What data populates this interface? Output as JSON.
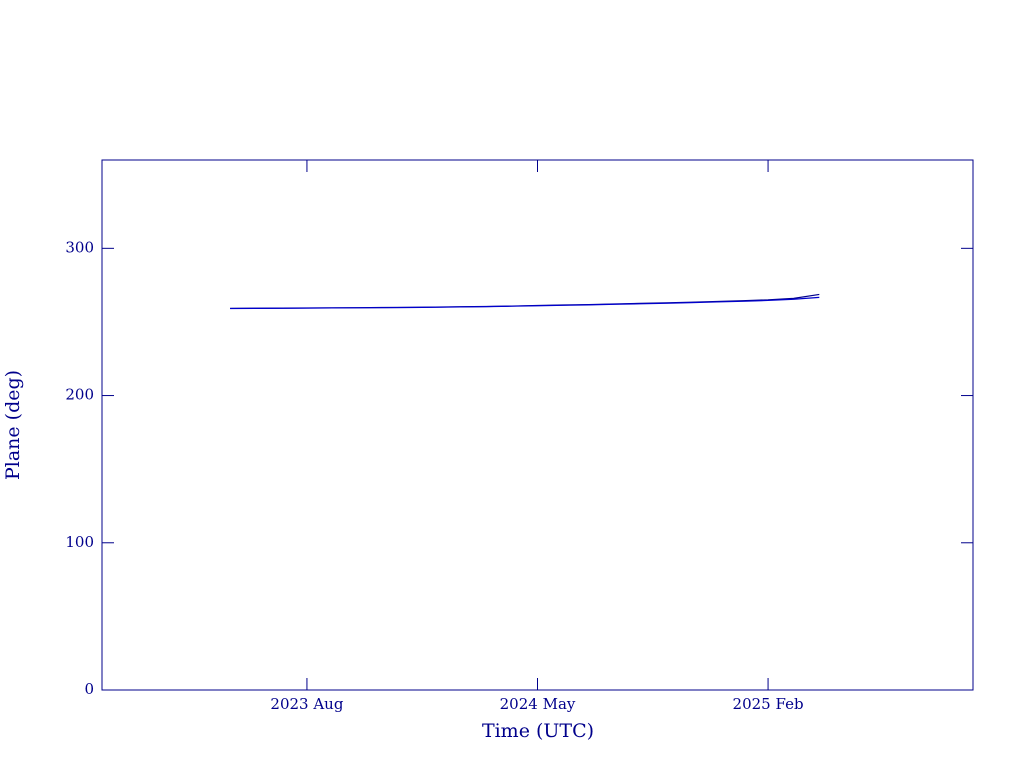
{
  "chart_data": {
    "type": "line",
    "x_label": "Time (UTC)",
    "y_label": "Plane (deg)",
    "x": [
      "2023-05",
      "2023-06",
      "2023-07",
      "2023-08",
      "2023-09",
      "2023-10",
      "2023-11",
      "2023-12",
      "2024-01",
      "2024-02",
      "2024-03",
      "2024-04",
      "2024-05",
      "2024-06",
      "2024-07",
      "2024-08",
      "2024-09",
      "2024-10",
      "2024-11",
      "2024-12",
      "2025-01",
      "2025-02",
      "2025-03",
      "2025-04"
    ],
    "series": [
      {
        "color": "#00008b",
        "values": [
          259.2,
          259.3,
          259.4,
          259.5,
          259.6,
          259.7,
          259.8,
          259.9,
          260.1,
          260.3,
          260.5,
          260.8,
          261.2,
          261.5,
          261.8,
          262.2,
          262.6,
          263.0,
          263.4,
          263.9,
          264.4,
          265.0,
          266.0,
          268.7
        ]
      },
      {
        "color": "#0000cd",
        "values": [
          259.1,
          259.2,
          259.3,
          259.4,
          259.5,
          259.6,
          259.7,
          259.8,
          260.0,
          260.2,
          260.4,
          260.7,
          261.0,
          261.3,
          261.6,
          262.0,
          262.3,
          262.7,
          263.1,
          263.6,
          264.0,
          264.6,
          265.4,
          266.7
        ]
      }
    ],
    "xlim": [
      "2022-12",
      "2025-10"
    ],
    "xticks": [
      {
        "value": "2023-08",
        "label": "2023 Aug"
      },
      {
        "value": "2024-05",
        "label": "2024 May"
      },
      {
        "value": "2025-02",
        "label": "2025 Feb"
      }
    ],
    "ylim": [
      0,
      360
    ],
    "yticks": [
      0,
      100,
      200,
      300
    ],
    "axis_color": "#00008b"
  }
}
